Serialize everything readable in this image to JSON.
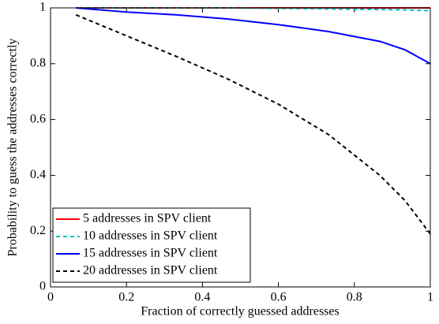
{
  "chart_data": {
    "type": "line",
    "xlabel": "Fraction of correctly guessed addresses",
    "ylabel": "Probability to guess the addresses correctly",
    "x": [
      0.067,
      0.2,
      0.333,
      0.467,
      0.6,
      0.733,
      0.867,
      0.933,
      1
    ],
    "series": [
      {
        "name": "5 addresses in SPV client",
        "color": "#ff0000",
        "linestyle": "solid",
        "values": [
          1,
          1,
          1,
          1,
          1,
          1,
          1,
          1,
          1
        ]
      },
      {
        "name": "10 addresses in SPV client",
        "color": "#00bfbf",
        "linestyle": "dashed",
        "values": [
          1,
          1,
          1,
          1,
          0.998,
          0.996,
          0.994,
          0.993,
          0.99
        ]
      },
      {
        "name": "15 addresses in SPV client",
        "color": "#0000ff",
        "linestyle": "solid",
        "values": [
          1,
          0.985,
          0.975,
          0.96,
          0.94,
          0.915,
          0.88,
          0.85,
          0.8
        ]
      },
      {
        "name": "20 addresses in SPV client",
        "color": "#000000",
        "linestyle": "dashed",
        "values": [
          0.975,
          0.9,
          0.825,
          0.745,
          0.655,
          0.545,
          0.4,
          0.31,
          0.19
        ]
      }
    ],
    "xlim": [
      0,
      1
    ],
    "xticks": [
      0,
      0.2,
      0.4,
      0.6,
      0.8,
      1
    ],
    "ylim": [
      0,
      1
    ],
    "yticks": [
      0,
      0.2,
      0.4,
      0.6,
      0.8,
      1
    ],
    "grid": false,
    "legend": "lower left"
  }
}
